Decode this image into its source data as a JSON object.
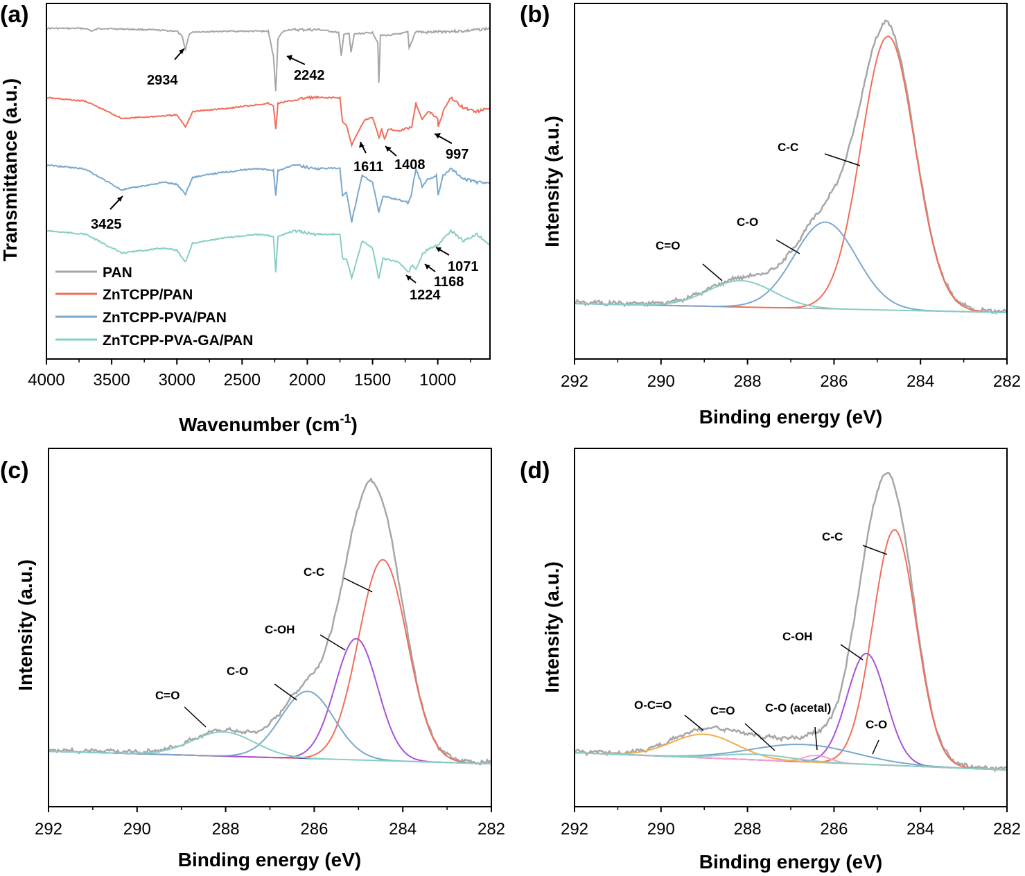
{
  "colors": {
    "gray": "#a6a6a6",
    "red": "#f06e5a",
    "blue": "#7aa7cd",
    "teal": "#86cfc5",
    "purple": "#a552d8",
    "orange": "#f2ad4b",
    "pink": "#f7a1cf",
    "baseline_blue": "#2b4bd0"
  },
  "chart_data": [
    {
      "panel": "(a)",
      "type": "line",
      "xlabel": "Wavenumber (cm",
      "xlabel_sup": "-1",
      "xlabel_close": ")",
      "ylabel": "Transmittance (a.u.)",
      "xlim": [
        4000,
        600
      ],
      "x_reversed": true,
      "xticks": [
        "4000",
        "3500",
        "3000",
        "2500",
        "2000",
        "1500",
        "1000"
      ],
      "xtick_values": [
        4000,
        3500,
        3000,
        2500,
        2000,
        1500,
        1000
      ],
      "legend": [
        "PAN",
        "ZnTCPP/PAN",
        "ZnTCPP-PVA/PAN",
        "ZnTCPP-PVA-GA/PAN"
      ],
      "series": [
        {
          "name": "PAN",
          "color_key": "gray",
          "offset": 0,
          "x": [
            4000,
            3700,
            3650,
            3600,
            3200,
            3000,
            2960,
            2934,
            2905,
            2870,
            2600,
            2300,
            2260,
            2242,
            2225,
            2190,
            2150,
            1900,
            1760,
            1740,
            1720,
            1680,
            1665,
            1640,
            1500,
            1460,
            1452,
            1440,
            1380,
            1230,
            1220,
            1170,
            1100,
            1000,
            900,
            800,
            700,
            600
          ],
          "y": [
            0,
            0,
            -4,
            0,
            -2,
            -4,
            -12,
            -30,
            -8,
            -5,
            -4,
            -4,
            -40,
            -90,
            -15,
            -5,
            -2,
            -2,
            -6,
            -40,
            -8,
            -8,
            -35,
            -8,
            -6,
            -20,
            -78,
            -10,
            -10,
            -6,
            -30,
            -4,
            -6,
            -5,
            -4,
            -4,
            -2,
            0
          ]
        },
        {
          "name": "ZnTCPP/PAN",
          "color_key": "red",
          "offset": 100,
          "x": [
            4000,
            3700,
            3420,
            3000,
            2934,
            2880,
            2600,
            2300,
            2260,
            2242,
            2225,
            2000,
            1750,
            1730,
            1700,
            1660,
            1611,
            1560,
            1500,
            1450,
            1430,
            1408,
            1380,
            1300,
            1200,
            1168,
            1120,
            1071,
            1000,
            997,
            950,
            900,
            800,
            700,
            600
          ],
          "y": [
            0,
            -5,
            -30,
            -25,
            -42,
            -20,
            -15,
            -8,
            -12,
            -45,
            -8,
            0,
            0,
            -35,
            -40,
            -68,
            -50,
            -32,
            -28,
            -58,
            -45,
            -60,
            -45,
            -48,
            -42,
            -8,
            -30,
            -20,
            -30,
            -42,
            -15,
            0,
            -15,
            -20,
            -15
          ]
        },
        {
          "name": "ZnTCPP-PVA/PAN",
          "color_key": "blue",
          "offset": 197,
          "x": [
            4000,
            3700,
            3425,
            3100,
            3000,
            2934,
            2880,
            2700,
            2400,
            2260,
            2242,
            2225,
            2100,
            1950,
            1750,
            1730,
            1700,
            1660,
            1611,
            1580,
            1500,
            1452,
            1420,
            1300,
            1224,
            1200,
            1168,
            1120,
            1071,
            1010,
            997,
            960,
            900,
            800,
            700,
            600
          ],
          "y": [
            0,
            -6,
            -36,
            -25,
            -28,
            -42,
            -18,
            -12,
            -5,
            -8,
            -45,
            -8,
            0,
            -5,
            -5,
            -45,
            -40,
            -82,
            -40,
            -15,
            -25,
            -68,
            -45,
            -50,
            -55,
            -40,
            -5,
            -30,
            -20,
            -15,
            -45,
            -15,
            -5,
            -20,
            -25,
            -25
          ]
        },
        {
          "name": "ZnTCPP-PVA-GA/PAN",
          "color_key": "teal",
          "offset": 292,
          "x": [
            4000,
            3700,
            3425,
            3100,
            3000,
            2934,
            2880,
            2700,
            2400,
            2260,
            2242,
            2225,
            2100,
            1950,
            1750,
            1730,
            1700,
            1660,
            1580,
            1500,
            1452,
            1420,
            1300,
            1224,
            1200,
            1168,
            1120,
            1071,
            1000,
            900,
            800,
            700,
            600
          ],
          "y": [
            0,
            -5,
            -32,
            -25,
            -28,
            -45,
            -18,
            -12,
            -5,
            -8,
            -60,
            -8,
            0,
            -5,
            -5,
            -40,
            -40,
            -68,
            -15,
            -25,
            -70,
            -40,
            -45,
            -60,
            -50,
            -55,
            -35,
            -25,
            -20,
            0,
            -15,
            -5,
            -20
          ]
        }
      ],
      "annotations": [
        "2934",
        "2242",
        "1611",
        "1408",
        "997",
        "3425",
        "1224",
        "1168",
        "1071"
      ]
    },
    {
      "panel": "(b)",
      "type": "line",
      "xlabel": "Binding energy (eV)",
      "ylabel": "Intensity (a.u.)",
      "xlim": [
        292,
        282
      ],
      "x_reversed": true,
      "xticks": [
        "292",
        "290",
        "288",
        "286",
        "284",
        "282"
      ],
      "xtick_values": [
        292,
        290,
        288,
        286,
        284,
        282
      ],
      "baseline": {
        "left": 3,
        "right": -10
      },
      "components": [
        {
          "name": "C-C",
          "color_key": "red",
          "center": 284.75,
          "sigma": 0.62,
          "height": 395
        },
        {
          "name": "C-O",
          "color_key": "blue",
          "center": 286.2,
          "sigma": 0.72,
          "height": 125
        },
        {
          "name": "C=O",
          "color_key": "teal",
          "center": 288.15,
          "sigma": 0.75,
          "height": 38
        }
      ],
      "envelope_color_key": "gray",
      "labels": [
        "C-C",
        "C-O",
        "C=O"
      ]
    },
    {
      "panel": "(c)",
      "type": "line",
      "xlabel": "Binding energy (eV)",
      "ylabel": "Intensity (a.u.)",
      "xlim": [
        292,
        282
      ],
      "x_reversed": true,
      "xticks": [
        "292",
        "290",
        "288",
        "286",
        "284",
        "282"
      ],
      "xtick_values": [
        292,
        290,
        288,
        286,
        284,
        282
      ],
      "baseline": {
        "left": 0,
        "right": -18
      },
      "components": [
        {
          "name": "C-C",
          "color_key": "red",
          "center": 284.45,
          "sigma": 0.55,
          "height": 290
        },
        {
          "name": "C-OH",
          "color_key": "purple",
          "center": 285.05,
          "sigma": 0.48,
          "height": 175
        },
        {
          "name": "C-O",
          "color_key": "blue",
          "center": 286.15,
          "sigma": 0.6,
          "height": 97
        },
        {
          "name": "C=O",
          "color_key": "teal",
          "center": 288.05,
          "sigma": 0.7,
          "height": 35
        }
      ],
      "envelope_color_key": "gray",
      "labels": [
        "C-C",
        "C-OH",
        "C-O",
        "C=O"
      ]
    },
    {
      "panel": "(d)",
      "type": "line",
      "xlabel": "Binding energy (eV)",
      "ylabel": "Intensity (a.u.)",
      "xlim": [
        292,
        282
      ],
      "x_reversed": true,
      "xticks": [
        "292",
        "290",
        "288",
        "286",
        "284",
        "282"
      ],
      "xtick_values": [
        292,
        290,
        288,
        286,
        284,
        282
      ],
      "baseline": {
        "left": 0,
        "right": -25
      },
      "components": [
        {
          "name": "C-C",
          "color_key": "red",
          "center": 284.6,
          "sigma": 0.5,
          "height": 340
        },
        {
          "name": "C-OH",
          "color_key": "purple",
          "center": 285.25,
          "sigma": 0.45,
          "height": 160
        },
        {
          "name": "C-O (acetal)",
          "color_key": "pink",
          "center": 286.4,
          "sigma": 0.3,
          "height": 10
        },
        {
          "name": "C-O",
          "color_key": "blue",
          "center": 286.7,
          "sigma": 1.2,
          "height": 25
        },
        {
          "name": "O-C=O",
          "color_key": "orange",
          "center": 289.0,
          "sigma": 0.75,
          "height": 34
        },
        {
          "name": "C=O",
          "color_key": "teal",
          "center": 287.8,
          "sigma": 0.8,
          "height": 8
        }
      ],
      "envelope_color_key": "gray",
      "labels": [
        "C-C",
        "C-OH",
        "C-O (acetal)",
        "C-O",
        "O-C=O",
        "C=O"
      ]
    }
  ]
}
